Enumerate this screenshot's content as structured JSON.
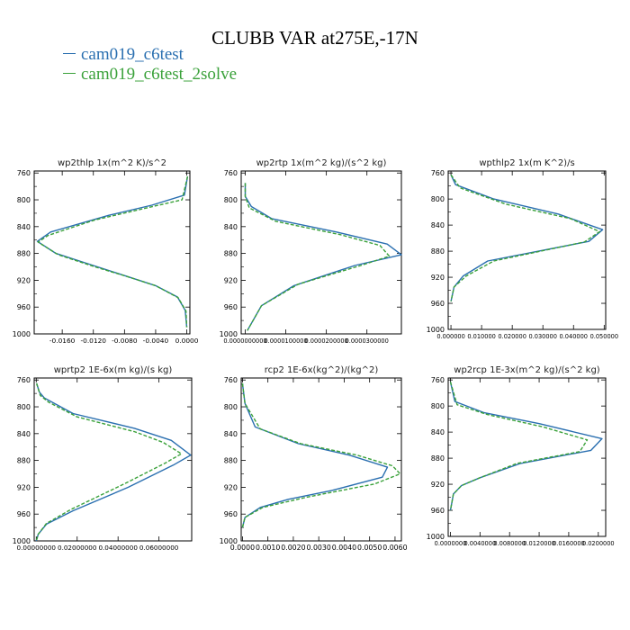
{
  "title": "CLUBB VAR at275E,-17N",
  "colors": {
    "series0": "#2a6fb0",
    "series1": "#3aa13a"
  },
  "legend": [
    "cam019_c6test",
    "cam019_c6test_2solve"
  ],
  "chart_data": [
    {
      "type": "line",
      "title": "wp2thlp   1x(m^2 K)/s^2",
      "xlim": [
        -0.0196,
        0.0004
      ],
      "ylim": [
        757,
        1000
      ],
      "y_inverted": true,
      "xticks": [
        -0.016,
        -0.012,
        -0.008,
        -0.004,
        0.0
      ],
      "xtick_labels": [
        "-0.0160",
        "-0.0120",
        "-0.0080",
        "-0.0040",
        "0.0000"
      ],
      "yticks": [
        760,
        800,
        840,
        880,
        920,
        960,
        1000
      ],
      "series": [
        {
          "name": "cam019_c6test",
          "x": [
            0.0001,
            -0.0003,
            -0.0045,
            -0.01,
            -0.0175,
            -0.0192,
            -0.0168,
            -0.012,
            -0.008,
            -0.004,
            -0.0012,
            -0.0002,
            0.0
          ],
          "y": [
            765,
            793,
            808,
            823,
            848,
            862,
            880,
            898,
            913,
            928,
            945,
            965,
            990
          ]
        },
        {
          "name": "cam019_c6test_2solve",
          "x": [
            0.0001,
            -0.0006,
            -0.0055,
            -0.0118,
            -0.0178,
            -0.0191,
            -0.0165,
            -0.0118,
            -0.0078,
            -0.004,
            -0.0011,
            -0.0001,
            0.0
          ],
          "y": [
            765,
            800,
            813,
            830,
            853,
            863,
            882,
            900,
            914,
            928,
            946,
            966,
            990
          ]
        }
      ]
    },
    {
      "type": "line",
      "title": "wp2rtp   1x(m^2 kg)/(s^2 kg)",
      "xlim": [
        -1e-06,
        3.85e-05
      ],
      "ylim": [
        757,
        1000
      ],
      "y_inverted": true,
      "xticks": [
        0.0,
        1e-05,
        2e-05,
        3e-05
      ],
      "xtick_labels": [
        "0.0000000000",
        "0.0000100000",
        "0.0000200000",
        "0.0000300000"
      ],
      "yticks": [
        760,
        800,
        840,
        880,
        920,
        960,
        1000
      ],
      "series": [
        {
          "name": "cam019_c6test",
          "x": [
            0.0,
            0.0,
            1.5e-06,
            6.5e-06,
            2.25e-05,
            3.5e-05,
            3.85e-05,
            2.7e-05,
            1.2e-05,
            4e-06,
            5e-07
          ],
          "y": [
            775,
            795,
            810,
            828,
            848,
            866,
            882,
            898,
            928,
            958,
            995
          ]
        },
        {
          "name": "cam019_c6test_2solve",
          "x": [
            0.0,
            0.0,
            1e-06,
            7.5e-06,
            2.35e-05,
            3.32e-05,
            3.55e-05,
            2.85e-05,
            1.3e-05,
            4e-06,
            5e-07
          ],
          "y": [
            775,
            795,
            812,
            832,
            852,
            868,
            884,
            898,
            926,
            958,
            995
          ]
        }
      ]
    },
    {
      "type": "line",
      "title": "wpthlp2   1x(m K^2)/s",
      "xlim": [
        -0.0009,
        0.0505
      ],
      "ylim": [
        757,
        1000
      ],
      "y_inverted": true,
      "xticks": [
        0.0,
        0.01,
        0.02,
        0.03,
        0.04,
        0.05
      ],
      "xtick_labels": [
        "0.000000",
        "0.010000",
        "0.020000",
        "0.030000",
        "0.040000",
        "0.050000"
      ],
      "yticks": [
        760,
        800,
        840,
        880,
        920,
        960,
        1000
      ],
      "series": [
        {
          "name": "cam019_c6test",
          "x": [
            0.0,
            0.0015,
            0.014,
            0.035,
            0.0495,
            0.045,
            0.012,
            0.004,
            0.001,
            0.0
          ],
          "y": [
            763,
            778,
            800,
            823,
            847,
            865,
            895,
            918,
            935,
            957
          ]
        },
        {
          "name": "cam019_c6test_2solve",
          "x": [
            0.0,
            0.003,
            0.018,
            0.039,
            0.0485,
            0.0435,
            0.014,
            0.005,
            0.001,
            0.0
          ],
          "y": [
            763,
            783,
            808,
            830,
            850,
            866,
            895,
            918,
            935,
            957
          ]
        }
      ]
    },
    {
      "type": "line",
      "title": "wprtp2   1E-6x(m kg)/(s kg)",
      "xlim": [
        -0.001,
        0.076
      ],
      "ylim": [
        757,
        1000
      ],
      "y_inverted": true,
      "xticks": [
        0.0,
        0.02,
        0.04,
        0.06
      ],
      "xtick_labels": [
        "0.00000000",
        "0.02000000",
        "0.04000000",
        "0.06000000"
      ],
      "yticks": [
        760,
        800,
        840,
        880,
        920,
        960,
        1000
      ],
      "series": [
        {
          "name": "cam019_c6test",
          "x": [
            0.0002,
            0.0015,
            0.004,
            0.018,
            0.048,
            0.066,
            0.0755,
            0.067,
            0.045,
            0.018,
            0.005,
            0.001,
            0.0
          ],
          "y": [
            765,
            778,
            787,
            810,
            832,
            850,
            872,
            887,
            920,
            955,
            975,
            990,
            1000
          ]
        },
        {
          "name": "cam019_c6test_2solve",
          "x": [
            0.0002,
            0.002,
            0.006,
            0.02,
            0.048,
            0.062,
            0.071,
            0.063,
            0.043,
            0.017,
            0.005,
            0.001,
            0.0
          ],
          "y": [
            765,
            783,
            793,
            815,
            837,
            853,
            870,
            884,
            915,
            953,
            974,
            990,
            1000
          ]
        }
      ]
    },
    {
      "type": "line",
      "title": "rcp2   1E-6x(kg^2)/(kg^2)",
      "xlim": [
        -5e-05,
        0.00625
      ],
      "ylim": [
        757,
        1000
      ],
      "y_inverted": true,
      "xticks": [
        0.0,
        0.001,
        0.002,
        0.003,
        0.004,
        0.005,
        0.006
      ],
      "xtick_labels": [
        "0.0000",
        "0.0010",
        "0.0020",
        "0.0030",
        "0.0040",
        "0.0050",
        "0.0060"
      ],
      "yticks": [
        760,
        800,
        840,
        880,
        920,
        960,
        1000
      ],
      "series": [
        {
          "name": "cam019_c6test",
          "x": [
            0.0,
            0.0001,
            0.0005,
            0.0022,
            0.0042,
            0.0057,
            0.0055,
            0.0035,
            0.0018,
            0.0007,
            0.0001,
            0.0
          ],
          "y": [
            765,
            795,
            830,
            855,
            872,
            890,
            905,
            925,
            938,
            950,
            965,
            980
          ]
        },
        {
          "name": "cam019_c6test_2solve",
          "x": [
            0.0,
            0.0001,
            0.0007,
            0.0023,
            0.0045,
            0.0059,
            0.0062,
            0.0052,
            0.0025,
            0.0008,
            0.0001,
            0.0
          ],
          "y": [
            765,
            795,
            833,
            855,
            872,
            888,
            900,
            915,
            935,
            950,
            965,
            980
          ]
        }
      ]
    },
    {
      "type": "line",
      "title": "wp2rcp   1E-3x(m^2 kg)/(s^2 kg)",
      "xlim": [
        -0.0003,
        0.021
      ],
      "ylim": [
        757,
        1000
      ],
      "y_inverted": true,
      "xticks": [
        0.0,
        0.004,
        0.008,
        0.012,
        0.016,
        0.02
      ],
      "xtick_labels": [
        "0.0000000",
        "0.0040000",
        "0.0080000",
        "0.0120000",
        "0.0160000",
        "0.0200000"
      ],
      "yticks": [
        760,
        800,
        840,
        880,
        920,
        960,
        1000
      ],
      "series": [
        {
          "name": "cam019_c6test",
          "x": [
            0.0,
            0.0006,
            0.0045,
            0.012,
            0.0205,
            0.019,
            0.0095,
            0.004,
            0.0015,
            0.0004,
            0.0
          ],
          "y": [
            763,
            793,
            810,
            827,
            850,
            868,
            888,
            910,
            922,
            935,
            960
          ]
        },
        {
          "name": "cam019_c6test_2solve",
          "x": [
            0.0,
            0.0009,
            0.005,
            0.0125,
            0.0185,
            0.0175,
            0.009,
            0.004,
            0.0015,
            0.0004,
            0.0
          ],
          "y": [
            763,
            798,
            813,
            832,
            852,
            870,
            888,
            910,
            922,
            935,
            960
          ]
        }
      ]
    }
  ]
}
